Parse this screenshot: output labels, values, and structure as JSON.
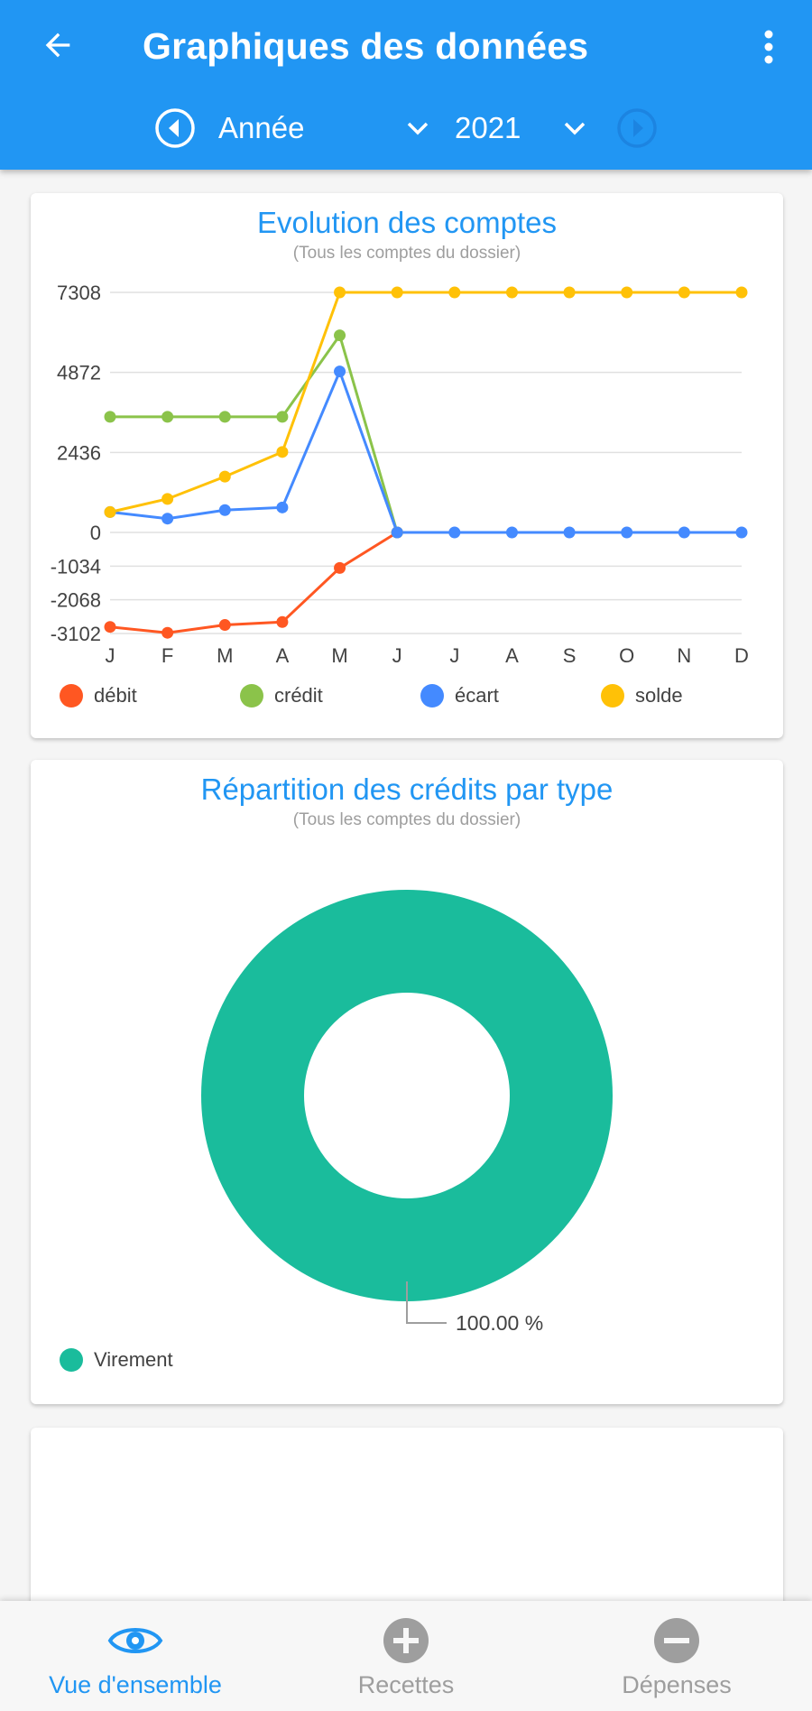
{
  "header": {
    "title": "Graphiques des données",
    "period_label": "Année",
    "year_label": "2021"
  },
  "line_card": {
    "title": "Evolution des comptes",
    "subtitle": "(Tous les comptes du dossier)"
  },
  "pie_card": {
    "title": "Répartition des crédits par type",
    "subtitle": "(Tous les comptes du dossier)",
    "slice_label": "100.00 %"
  },
  "bottom_nav": {
    "items": [
      {
        "label": "Vue d'ensemble",
        "active": true
      },
      {
        "label": "Recettes",
        "active": false
      },
      {
        "label": "Dépenses",
        "active": false
      }
    ]
  },
  "colors": {
    "primary": "#2196f3",
    "debit": "#ff5722",
    "credit": "#8bc34a",
    "ecart": "#448aff",
    "solde": "#ffc107",
    "virement": "#1abc9c",
    "inactive": "#9e9e9e"
  },
  "chart_data": [
    {
      "type": "line",
      "title": "Evolution des comptes",
      "subtitle": "(Tous les comptes du dossier)",
      "x": [
        "J",
        "F",
        "M",
        "A",
        "M",
        "J",
        "J",
        "A",
        "S",
        "O",
        "N",
        "D"
      ],
      "y_ticks": [
        "7308",
        "4872",
        "2436",
        "0",
        "-1034",
        "-2068",
        "-3102"
      ],
      "grid": true,
      "legend_position": "bottom",
      "series": [
        {
          "name": "débit",
          "color": "#ff5722",
          "values": [
            -2900,
            -3080,
            -2840,
            -2750,
            -1090,
            0,
            null,
            null,
            null,
            null,
            null,
            null
          ]
        },
        {
          "name": "crédit",
          "color": "#8bc34a",
          "values": [
            3520,
            3520,
            3520,
            3520,
            6000,
            0,
            null,
            null,
            null,
            null,
            null,
            null
          ]
        },
        {
          "name": "écart",
          "color": "#448aff",
          "values": [
            620,
            420,
            680,
            760,
            4900,
            0,
            0,
            0,
            0,
            0,
            0,
            0
          ]
        },
        {
          "name": "solde",
          "color": "#ffc107",
          "values": [
            620,
            1020,
            1700,
            2450,
            7308,
            7308,
            7308,
            7308,
            7308,
            7308,
            7308,
            7308
          ]
        }
      ]
    },
    {
      "type": "pie",
      "title": "Répartition des crédits par type",
      "subtitle": "(Tous les comptes du dossier)",
      "donut": true,
      "legend_position": "bottom-left",
      "slices": [
        {
          "name": "Virement",
          "value": 100.0,
          "label": "100.00 %",
          "color": "#1abc9c"
        }
      ]
    }
  ]
}
